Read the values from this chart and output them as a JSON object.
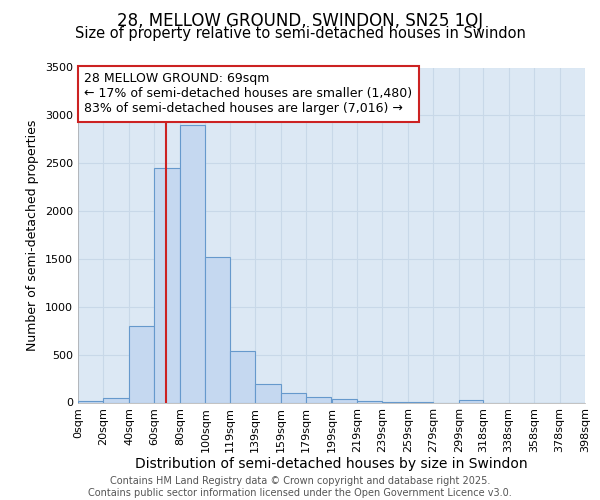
{
  "title1": "28, MELLOW GROUND, SWINDON, SN25 1QJ",
  "title2": "Size of property relative to semi-detached houses in Swindon",
  "xlabel": "Distribution of semi-detached houses by size in Swindon",
  "ylabel": "Number of semi-detached properties",
  "bin_labels": [
    "0sqm",
    "20sqm",
    "40sqm",
    "60sqm",
    "80sqm",
    "100sqm",
    "119sqm",
    "139sqm",
    "159sqm",
    "179sqm",
    "199sqm",
    "219sqm",
    "239sqm",
    "259sqm",
    "279sqm",
    "299sqm",
    "318sqm",
    "338sqm",
    "358sqm",
    "378sqm",
    "398sqm"
  ],
  "bin_lefts": [
    0,
    20,
    40,
    60,
    80,
    100,
    119,
    139,
    159,
    179,
    199,
    219,
    239,
    259,
    279,
    299,
    318,
    338,
    358,
    378
  ],
  "bin_widths": [
    20,
    20,
    20,
    20,
    20,
    19,
    20,
    20,
    20,
    20,
    20,
    20,
    20,
    20,
    20,
    19,
    20,
    20,
    20,
    20
  ],
  "bar_heights": [
    20,
    50,
    800,
    2450,
    2900,
    1520,
    540,
    190,
    95,
    60,
    35,
    20,
    10,
    5,
    0,
    25,
    0,
    0,
    0,
    0
  ],
  "bar_color": "#c5d8f0",
  "bar_edgecolor": "#6699cc",
  "property_sqm": 69,
  "red_line_color": "#cc2222",
  "annotation_line1": "28 MELLOW GROUND: 69sqm",
  "annotation_line2": "← 17% of semi-detached houses are smaller (1,480)",
  "annotation_line3": "83% of semi-detached houses are larger (7,016) →",
  "annotation_box_color": "#ffffff",
  "annotation_box_edgecolor": "#cc2222",
  "ylim": [
    0,
    3500
  ],
  "yticks": [
    0,
    500,
    1000,
    1500,
    2000,
    2500,
    3000,
    3500
  ],
  "grid_color": "#c8d8e8",
  "background_color": "#dce8f4",
  "fig_background": "#ffffff",
  "footer_text": "Contains HM Land Registry data © Crown copyright and database right 2025.\nContains public sector information licensed under the Open Government Licence v3.0.",
  "title1_fontsize": 12,
  "title2_fontsize": 10.5,
  "xlabel_fontsize": 10,
  "ylabel_fontsize": 9,
  "tick_fontsize": 8,
  "annotation_fontsize": 9,
  "footer_fontsize": 7
}
